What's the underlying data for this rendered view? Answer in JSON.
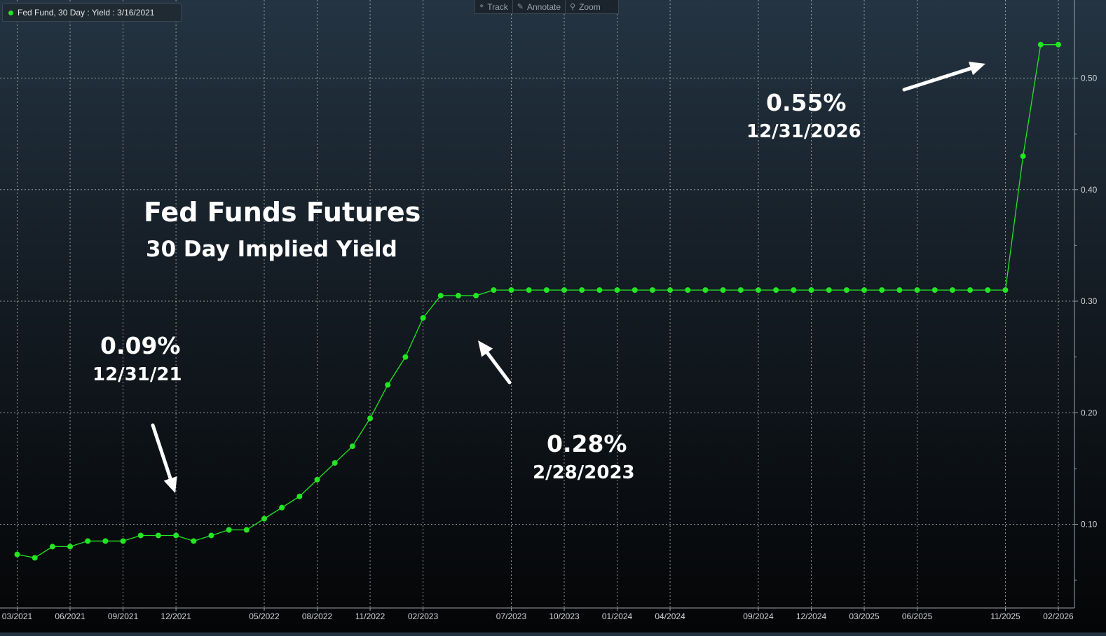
{
  "legend": {
    "label": "Fed Fund, 30 Day : Yield : 3/16/2021"
  },
  "toolbar": [
    {
      "label": "Track",
      "icon": "crosshair-icon",
      "glyph": "⌖"
    },
    {
      "label": "Annotate",
      "icon": "pencil-icon",
      "glyph": "✎"
    },
    {
      "label": "Zoom",
      "icon": "magnifier-icon",
      "glyph": "⚲"
    }
  ],
  "headline": {
    "title": "Fed Funds Futures",
    "subtitle": "30 Day Implied Yield"
  },
  "annotations": [
    {
      "value": "0.09%",
      "date": "12/31/21"
    },
    {
      "value": "0.28%",
      "date": "2/28/2023"
    },
    {
      "value": "0.55%",
      "date": "12/31/2026"
    }
  ],
  "colors": {
    "series": "#22e622",
    "background_top": "#243442",
    "background_bottom": "#040506",
    "text": "#ffffff"
  },
  "chart_data": {
    "type": "line",
    "series": [
      {
        "name": "Fed Fund, 30 Day : Yield : 3/16/2021",
        "points": [
          [
            "2021-03",
            0.073
          ],
          [
            "2021-04",
            0.07
          ],
          [
            "2021-05",
            0.08
          ],
          [
            "2021-06",
            0.08
          ],
          [
            "2021-07",
            0.085
          ],
          [
            "2021-08",
            0.085
          ],
          [
            "2021-09",
            0.085
          ],
          [
            "2021-10",
            0.09
          ],
          [
            "2021-11",
            0.09
          ],
          [
            "2021-12",
            0.09
          ],
          [
            "2022-01",
            0.085
          ],
          [
            "2022-02",
            0.09
          ],
          [
            "2022-03",
            0.095
          ],
          [
            "2022-04",
            0.095
          ],
          [
            "2022-05",
            0.105
          ],
          [
            "2022-06",
            0.115
          ],
          [
            "2022-07",
            0.125
          ],
          [
            "2022-08",
            0.14
          ],
          [
            "2022-09",
            0.155
          ],
          [
            "2022-10",
            0.17
          ],
          [
            "2022-11",
            0.195
          ],
          [
            "2022-12",
            0.225
          ],
          [
            "2023-01",
            0.25
          ],
          [
            "2023-02",
            0.285
          ],
          [
            "2023-03",
            0.305
          ],
          [
            "2023-04",
            0.305
          ],
          [
            "2023-05",
            0.305
          ],
          [
            "2023-06",
            0.31
          ],
          [
            "2023-07",
            0.31
          ],
          [
            "2023-08",
            0.31
          ],
          [
            "2023-09",
            0.31
          ],
          [
            "2023-10",
            0.31
          ],
          [
            "2023-11",
            0.31
          ],
          [
            "2023-12",
            0.31
          ],
          [
            "2024-01",
            0.31
          ],
          [
            "2024-02",
            0.31
          ],
          [
            "2024-03",
            0.31
          ],
          [
            "2024-04",
            0.31
          ],
          [
            "2024-05",
            0.31
          ],
          [
            "2024-06",
            0.31
          ],
          [
            "2024-07",
            0.31
          ],
          [
            "2024-08",
            0.31
          ],
          [
            "2024-09",
            0.31
          ],
          [
            "2024-10",
            0.31
          ],
          [
            "2024-11",
            0.31
          ],
          [
            "2024-12",
            0.31
          ],
          [
            "2025-01",
            0.31
          ],
          [
            "2025-02",
            0.31
          ],
          [
            "2025-03",
            0.31
          ],
          [
            "2025-04",
            0.31
          ],
          [
            "2025-05",
            0.31
          ],
          [
            "2025-06",
            0.31
          ],
          [
            "2025-07",
            0.31
          ],
          [
            "2025-08",
            0.31
          ],
          [
            "2025-09",
            0.31
          ],
          [
            "2025-10",
            0.31
          ],
          [
            "2025-11",
            0.31
          ],
          [
            "2025-12",
            0.43
          ],
          [
            "2026-01",
            0.53
          ],
          [
            "2026-02",
            0.53
          ]
        ]
      }
    ],
    "x_ticks": [
      "03/2021",
      "06/2021",
      "09/2021",
      "12/2021",
      "05/2022",
      "08/2022",
      "11/2022",
      "02/2023",
      "07/2023",
      "10/2023",
      "01/2024",
      "04/2024",
      "09/2024",
      "12/2024",
      "03/2025",
      "06/2025",
      "11/2025",
      "02/2026"
    ],
    "y_ticks": [
      "0.10",
      "0.20",
      "0.30",
      "0.40",
      "0.50"
    ],
    "xlim": [
      "2021-03",
      "2026-02"
    ],
    "ylim": [
      0.025,
      0.57
    ],
    "y_axis_side": "right",
    "grid": true,
    "title": "Fed Funds Futures",
    "subtitle": "30 Day Implied Yield",
    "xlabel": "",
    "ylabel": ""
  }
}
